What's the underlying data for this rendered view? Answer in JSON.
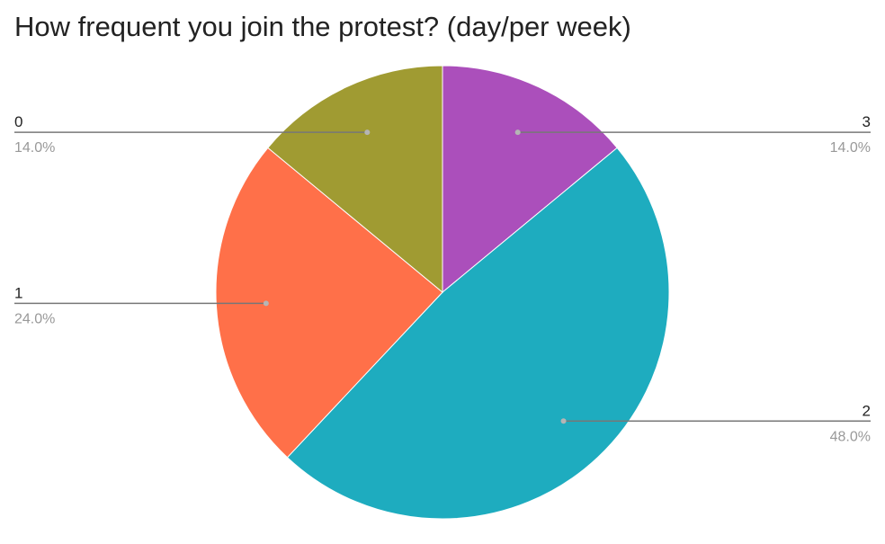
{
  "chart_data": {
    "type": "pie",
    "title": "How frequent you join the protest? (day/per week)",
    "start_angle": "12 o'clock, clockwise",
    "slices": [
      {
        "label": "3",
        "value": 14.0,
        "percent_label": "14.0%",
        "color": "#ab4fbb"
      },
      {
        "label": "2",
        "value": 48.0,
        "percent_label": "48.0%",
        "color": "#1eacbf"
      },
      {
        "label": "1",
        "value": 24.0,
        "percent_label": "24.0%",
        "color": "#ff7049"
      },
      {
        "label": "0",
        "value": 14.0,
        "percent_label": "14.0%",
        "color": "#a09b32"
      }
    ],
    "leader_line_color": "#777777",
    "leader_dot_color": "#b5b5b5"
  }
}
